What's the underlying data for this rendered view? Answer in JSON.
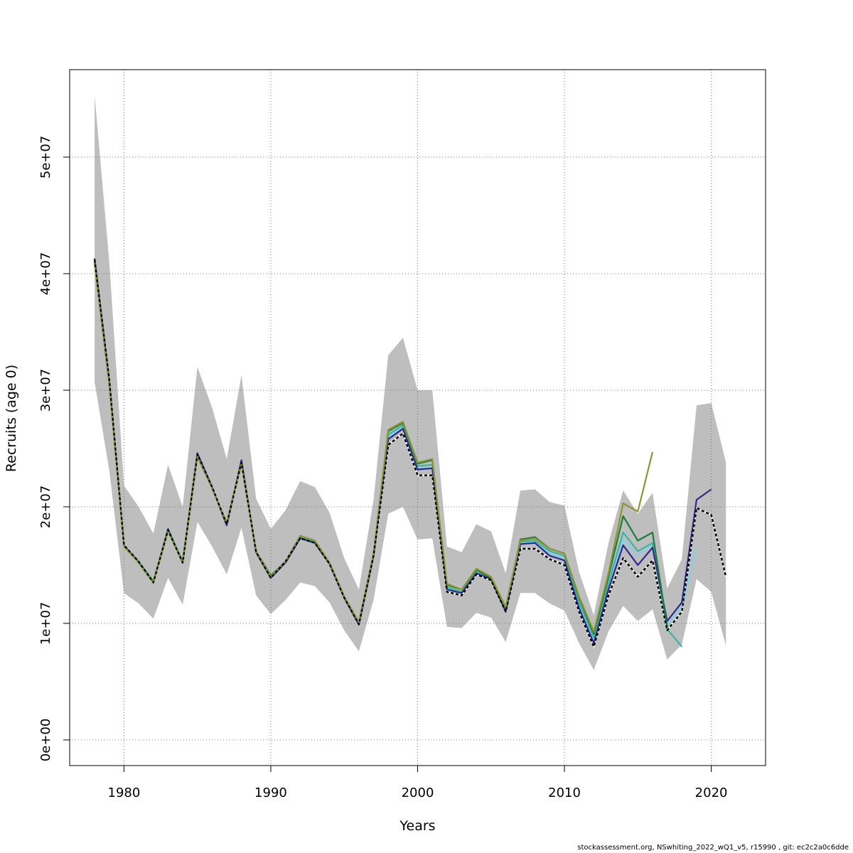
{
  "footer": "stockassessment.org, NSwhiting_2022_wQ1_v5, r15990 , git: ec2c2a0c6dde",
  "chart_data": {
    "type": "line",
    "title": "",
    "xlabel": "Years",
    "ylabel": "Recruits (age 0)",
    "xlim": [
      1976.3,
      2023.7
    ],
    "ylim": [
      -2200000,
      57500000
    ],
    "x_ticks": [
      1980,
      1990,
      2000,
      2010,
      2020
    ],
    "x_tick_labels": [
      "1980",
      "1990",
      "2000",
      "2010",
      "2020"
    ],
    "y_ticks": [
      0,
      10000000,
      20000000,
      30000000,
      40000000,
      50000000
    ],
    "y_tick_labels": [
      "0e+00",
      "1e+07",
      "2e+07",
      "3e+07",
      "4e+07",
      "5e+07"
    ],
    "grid": true,
    "legend": "none",
    "confidence_band": {
      "color": "#bebebe",
      "x": [
        1978,
        1979,
        1980,
        1981,
        1982,
        1983,
        1984,
        1985,
        1986,
        1987,
        1988,
        1989,
        1990,
        1991,
        1992,
        1993,
        1994,
        1995,
        1996,
        1997,
        1998,
        1999,
        2000,
        2001,
        2002,
        2003,
        2004,
        2005,
        2006,
        2007,
        2008,
        2009,
        2010,
        2011,
        2012,
        2013,
        2014,
        2015,
        2016,
        2017,
        2018,
        2019,
        2020,
        2021
      ],
      "upper": [
        55300000,
        41000000,
        21800000,
        20000000,
        17700000,
        23600000,
        20000000,
        32000000,
        28500000,
        24100000,
        31300000,
        20700000,
        18100000,
        19700000,
        22200000,
        21700000,
        19500000,
        15600000,
        12900000,
        20600000,
        33000000,
        34500000,
        30000000,
        30000000,
        16600000,
        16100000,
        18500000,
        17900000,
        14300000,
        21400000,
        21500000,
        20400000,
        20100000,
        14400000,
        10700000,
        16900000,
        21400000,
        19400000,
        21200000,
        13000000,
        15500000,
        28700000,
        28900000,
        23800000
      ],
      "lower": [
        30700000,
        23100000,
        12600000,
        11700000,
        10400000,
        13900000,
        11600000,
        18700000,
        16600000,
        14200000,
        18200000,
        12400000,
        10800000,
        12000000,
        13500000,
        13200000,
        11800000,
        9400000,
        7600000,
        12000000,
        19400000,
        20000000,
        17200000,
        17300000,
        9700000,
        9600000,
        10900000,
        10500000,
        8400000,
        12600000,
        12600000,
        11700000,
        11100000,
        8300000,
        6000000,
        9300000,
        11500000,
        10200000,
        11200000,
        6900000,
        8200000,
        13800000,
        12700000,
        8100000
      ]
    },
    "series": [
      {
        "color": "#000000",
        "dashed": true,
        "x": [
          1978,
          1979,
          1980,
          1981,
          1982,
          1983,
          1984,
          1985,
          1986,
          1987,
          1988,
          1989,
          1990,
          1991,
          1992,
          1993,
          1994,
          1995,
          1996,
          1997,
          1998,
          1999,
          2000,
          2001,
          2002,
          2003,
          2004,
          2005,
          2006,
          2007,
          2008,
          2009,
          2010,
          2011,
          2012,
          2013,
          2014,
          2015,
          2016,
          2017,
          2018,
          2019,
          2020,
          2021
        ],
        "values": [
          41200000,
          30900000,
          16700000,
          15300000,
          13500000,
          18000000,
          15200000,
          24500000,
          21700000,
          18500000,
          23800000,
          16100000,
          13900000,
          15300000,
          17300000,
          16900000,
          15100000,
          12200000,
          9900000,
          15800000,
          25300000,
          26300000,
          22700000,
          22700000,
          12700000,
          12400000,
          14200000,
          13700000,
          11000000,
          16400000,
          16400000,
          15500000,
          15000000,
          11000000,
          8000000,
          12400000,
          15600000,
          14000000,
          15400000,
          9400000,
          11000000,
          19900000,
          19300000,
          14000000
        ]
      },
      {
        "color": "#87ceeb",
        "dashed": false,
        "x": [
          1978,
          1979,
          1980,
          1981,
          1982,
          1983,
          1984,
          1985,
          1986,
          1987,
          1988,
          1989,
          1990,
          1991,
          1992,
          1993,
          1994,
          1995,
          1996,
          1997,
          1998,
          1999,
          2000,
          2001,
          2002,
          2003,
          2004,
          2005,
          2006,
          2007,
          2008,
          2009,
          2010,
          2011,
          2012,
          2013,
          2014,
          2015,
          2016,
          2017,
          2018,
          2019
        ],
        "values": [
          41000000,
          30600000,
          16600000,
          15200000,
          13500000,
          18000000,
          15200000,
          24400000,
          21600000,
          18500000,
          23800000,
          16100000,
          13900000,
          15200000,
          17300000,
          16900000,
          15100000,
          12200000,
          9900000,
          15900000,
          26000000,
          26900000,
          23300000,
          23400000,
          13000000,
          12600000,
          14400000,
          13800000,
          11100000,
          16900000,
          17000000,
          16000000,
          15600000,
          11600000,
          8600000,
          13000000,
          17200000,
          15800000,
          16800000,
          9800000,
          11400000,
          16500000
        ]
      },
      {
        "color": "#3cb4a0",
        "dashed": false,
        "x": [
          1978,
          1979,
          1980,
          1981,
          1982,
          1983,
          1984,
          1985,
          1986,
          1987,
          1988,
          1989,
          1990,
          1991,
          1992,
          1993,
          1994,
          1995,
          1996,
          1997,
          1998,
          1999,
          2000,
          2001,
          2002,
          2003,
          2004,
          2005,
          2006,
          2007,
          2008,
          2009,
          2010,
          2011,
          2012,
          2013,
          2014,
          2015,
          2016,
          2017,
          2018
        ],
        "values": [
          40900000,
          30500000,
          16600000,
          15200000,
          13500000,
          18000000,
          15200000,
          24400000,
          21600000,
          18600000,
          23900000,
          16100000,
          14000000,
          15300000,
          17400000,
          17000000,
          15200000,
          12300000,
          10000000,
          15900000,
          26200000,
          27000000,
          23500000,
          23600000,
          13100000,
          12700000,
          14500000,
          13900000,
          11200000,
          17000000,
          17100000,
          16200000,
          15800000,
          11800000,
          8800000,
          13400000,
          17800000,
          16200000,
          16900000,
          9500000,
          8000000
        ]
      },
      {
        "color": "#2e2a8c",
        "dashed": false,
        "x": [
          1978,
          1979,
          1980,
          1981,
          1982,
          1983,
          1984,
          1985,
          1986,
          1987,
          1988,
          1989,
          1990,
          1991,
          1992,
          1993,
          1994,
          1995,
          1996,
          1997,
          1998,
          1999,
          2000,
          2001,
          2002,
          2003,
          2004,
          2005,
          2006,
          2007,
          2008,
          2009,
          2010,
          2011,
          2012,
          2013,
          2014,
          2015,
          2016,
          2017,
          2018,
          2019,
          2020
        ],
        "values": [
          41300000,
          30800000,
          16700000,
          15200000,
          13500000,
          18100000,
          15200000,
          24600000,
          21700000,
          18400000,
          24000000,
          16100000,
          13900000,
          15200000,
          17300000,
          16900000,
          15100000,
          12200000,
          9900000,
          15800000,
          25800000,
          26700000,
          23200000,
          23300000,
          12900000,
          12600000,
          14300000,
          13800000,
          11000000,
          16800000,
          16900000,
          15800000,
          15400000,
          11300000,
          8300000,
          12900000,
          16700000,
          15000000,
          16500000,
          10200000,
          11800000,
          20600000,
          21500000
        ]
      },
      {
        "color": "#1e7a3c",
        "dashed": false,
        "x": [
          1978,
          1979,
          1980,
          1981,
          1982,
          1983,
          1984,
          1985,
          1986,
          1987,
          1988,
          1989,
          1990,
          1991,
          1992,
          1993,
          1994,
          1995,
          1996,
          1997,
          1998,
          1999,
          2000,
          2001,
          2002,
          2003,
          2004,
          2005,
          2006,
          2007,
          2008,
          2009,
          2010,
          2011,
          2012,
          2013,
          2014,
          2015,
          2016,
          2017
        ],
        "values": [
          41000000,
          30600000,
          16700000,
          15300000,
          13600000,
          18000000,
          15300000,
          24400000,
          21600000,
          18600000,
          23800000,
          16200000,
          14100000,
          15300000,
          17500000,
          17100000,
          15200000,
          12300000,
          10100000,
          16000000,
          26500000,
          27200000,
          23700000,
          24000000,
          13300000,
          12900000,
          14600000,
          13900000,
          11300000,
          17200000,
          17400000,
          16400000,
          16000000,
          12200000,
          9100000,
          14000000,
          19200000,
          17100000,
          17800000,
          9700000
        ]
      },
      {
        "color": "#8c962e",
        "dashed": false,
        "x": [
          1978,
          1979,
          1980,
          1981,
          1982,
          1983,
          1984,
          1985,
          1986,
          1987,
          1988,
          1989,
          1990,
          1991,
          1992,
          1993,
          1994,
          1995,
          1996,
          1997,
          1998,
          1999,
          2000,
          2001,
          2002,
          2003,
          2004,
          2005,
          2006,
          2007,
          2008,
          2009,
          2010,
          2011,
          2012,
          2013,
          2014,
          2015,
          2016
        ],
        "values": [
          40800000,
          30500000,
          16600000,
          15200000,
          13500000,
          17900000,
          15200000,
          24300000,
          21600000,
          18600000,
          23700000,
          16200000,
          14000000,
          15300000,
          17500000,
          17100000,
          15200000,
          12300000,
          10100000,
          16000000,
          26600000,
          27300000,
          23800000,
          24100000,
          13400000,
          12900000,
          14700000,
          14000000,
          11400000,
          17100000,
          17300000,
          16400000,
          16000000,
          12300000,
          9300000,
          14300000,
          20300000,
          19600000,
          24700000
        ]
      }
    ]
  }
}
